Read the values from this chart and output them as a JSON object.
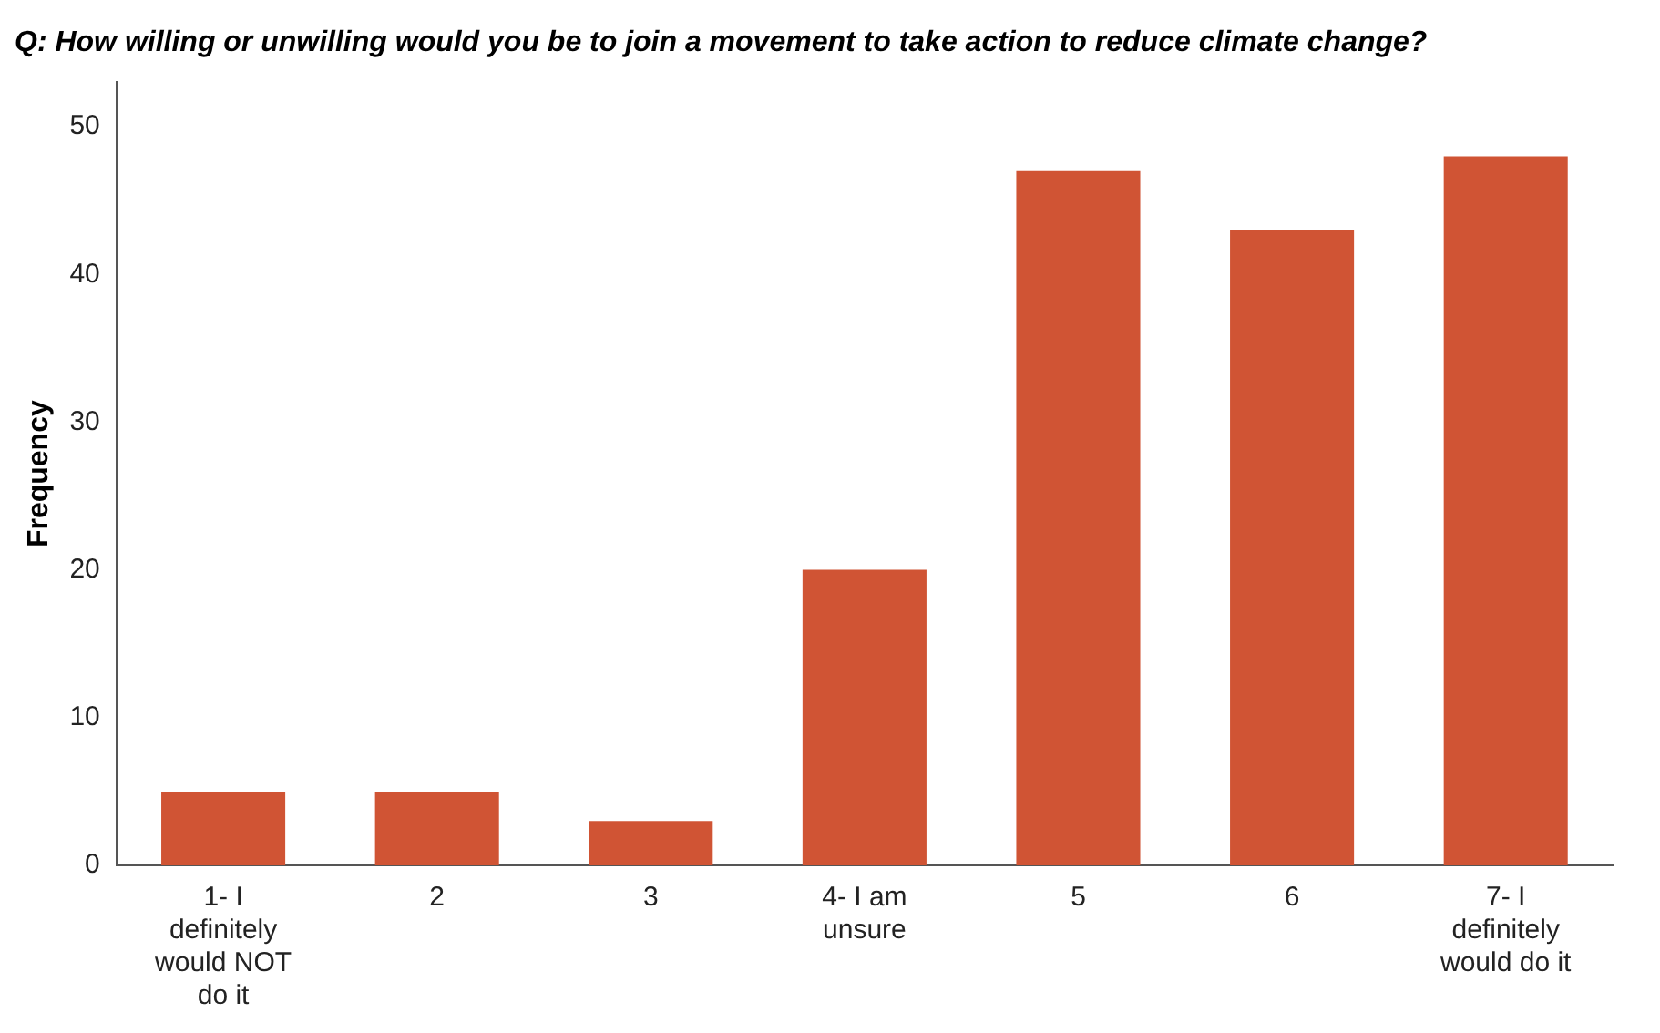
{
  "chart_data": {
    "type": "bar",
    "title": "Q: How willing or unwilling would you be to join a movement to take action to reduce climate change?",
    "ylabel": "Frequency",
    "categories": [
      "1- I definitely would NOT do it",
      "2",
      "3",
      "4- I am unsure",
      "5",
      "6",
      "7- I definitely would do it"
    ],
    "values": [
      5,
      5,
      3,
      20,
      47,
      43,
      48
    ],
    "color": "#d05434",
    "ylim": [
      0,
      53
    ],
    "yticks": [
      0,
      10,
      20,
      30,
      40,
      50
    ],
    "grid": false,
    "legend": false
  }
}
